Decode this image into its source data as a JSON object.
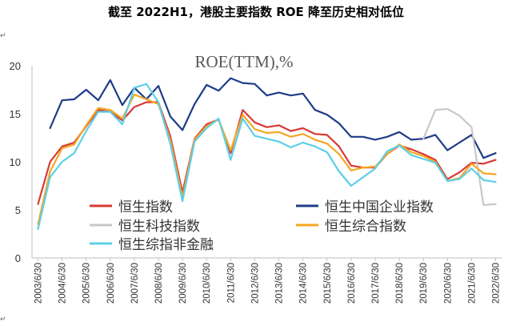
{
  "header": {
    "title": "截至 2022H1，港股主要指数 ROE 降至历史相对低位",
    "return_mark": "↵"
  },
  "chart_data": {
    "type": "line",
    "title": "ROE(TTM),%",
    "xlabel": "",
    "ylabel": "",
    "ylim": [
      0,
      20
    ],
    "yticks": [
      0,
      5,
      10,
      15,
      20
    ],
    "grid": false,
    "legend_position": "lower-center",
    "x": [
      "2003/6/30",
      "2003/12/31",
      "2004/6/30",
      "2004/12/31",
      "2005/6/30",
      "2005/12/31",
      "2006/6/30",
      "2006/12/31",
      "2007/6/30",
      "2007/12/31",
      "2008/6/30",
      "2008/12/31",
      "2009/6/30",
      "2009/12/31",
      "2010/6/30",
      "2010/12/31",
      "2011/6/30",
      "2011/12/31",
      "2012/6/30",
      "2012/12/31",
      "2013/6/30",
      "2013/12/31",
      "2014/6/30",
      "2014/12/31",
      "2015/6/30",
      "2015/12/31",
      "2016/6/30",
      "2016/12/31",
      "2017/6/30",
      "2017/12/31",
      "2018/6/30",
      "2018/12/31",
      "2019/6/30",
      "2019/12/31",
      "2020/6/30",
      "2020/12/31",
      "2021/6/30",
      "2021/12/31",
      "2022/6/30"
    ],
    "xtick_labels": [
      "2003/6/30",
      "2004/6/30",
      "2005/6/30",
      "2006/6/30",
      "2007/6/30",
      "2008/6/30",
      "2009/6/30",
      "2010/6/30",
      "2011/6/30",
      "2012/6/30",
      "2013/6/30",
      "2014/6/30",
      "2015/6/30",
      "2016/6/30",
      "2017/6/30",
      "2018/6/30",
      "2019/6/30",
      "2020/6/30",
      "2021/6/30",
      "2022/6/30"
    ],
    "series": [
      {
        "name": "恒生指数",
        "color": "#d83a34",
        "values": [
          5.6,
          10.0,
          11.6,
          12.0,
          13.7,
          15.4,
          15.2,
          14.3,
          15.7,
          16.2,
          16.2,
          12.6,
          6.8,
          12.4,
          13.9,
          14.4,
          10.9,
          15.4,
          14.1,
          13.6,
          13.8,
          13.2,
          13.5,
          12.9,
          12.8,
          11.6,
          9.6,
          9.4,
          9.4,
          10.8,
          11.7,
          11.3,
          10.8,
          10.2,
          8.2,
          8.9,
          9.9,
          9.8,
          10.2
        ]
      },
      {
        "name": "恒生中国企业指数",
        "color": "#1f3c88",
        "values": [
          null,
          13.5,
          16.4,
          16.5,
          17.5,
          16.4,
          18.5,
          15.9,
          17.7,
          16.5,
          17.9,
          14.7,
          13.3,
          16.0,
          18.0,
          17.4,
          18.7,
          18.2,
          18.1,
          16.9,
          17.2,
          16.9,
          17.1,
          15.4,
          14.9,
          14.0,
          12.6,
          12.6,
          12.3,
          12.6,
          13.1,
          12.3,
          12.4,
          12.8,
          11.2,
          12.0,
          12.8,
          10.4,
          10.9
        ]
      },
      {
        "name": "恒生科技指数",
        "color": "#c8c8c8",
        "values": [
          null,
          null,
          null,
          null,
          null,
          null,
          null,
          null,
          null,
          null,
          null,
          null,
          null,
          null,
          null,
          null,
          null,
          null,
          null,
          null,
          null,
          null,
          null,
          null,
          null,
          null,
          null,
          null,
          null,
          null,
          null,
          null,
          12.4,
          15.4,
          15.5,
          14.8,
          13.6,
          5.5,
          5.6
        ]
      },
      {
        "name": "恒生综合指数",
        "color": "#f5a623",
        "values": [
          3.5,
          9.0,
          11.4,
          11.8,
          13.8,
          15.6,
          15.4,
          14.5,
          17.0,
          16.5,
          16.0,
          12.2,
          6.3,
          12.3,
          13.7,
          14.4,
          11.2,
          14.9,
          13.4,
          13.0,
          13.1,
          12.6,
          12.9,
          12.3,
          11.9,
          10.8,
          9.1,
          9.4,
          9.5,
          10.8,
          11.8,
          11.0,
          10.6,
          10.0,
          8.0,
          8.3,
          9.8,
          8.8,
          8.7
        ]
      },
      {
        "name": "恒生综指非金融",
        "color": "#5bd0e8",
        "values": [
          3.0,
          8.4,
          10.0,
          10.9,
          13.2,
          15.2,
          15.2,
          13.9,
          17.7,
          18.1,
          16.2,
          11.8,
          5.9,
          12.1,
          13.5,
          14.5,
          10.2,
          14.5,
          12.7,
          12.4,
          12.1,
          11.5,
          12.0,
          11.6,
          11.0,
          9.0,
          7.5,
          8.4,
          9.3,
          11.1,
          11.7,
          10.7,
          10.3,
          9.9,
          8.0,
          8.2,
          9.3,
          8.1,
          7.9
        ]
      }
    ]
  }
}
